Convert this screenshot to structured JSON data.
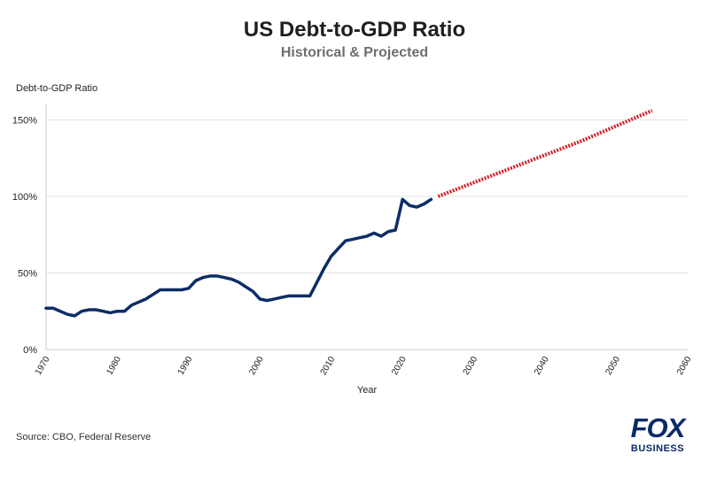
{
  "chart_data": {
    "type": "line",
    "title": "US Debt-to-GDP Ratio",
    "subtitle": "Historical & Projected",
    "xlabel": "Year",
    "ylabel": "Debt-to-GDP Ratio",
    "xlim": [
      1970,
      2060
    ],
    "ylim": [
      0,
      160
    ],
    "xticks": [
      1970,
      1980,
      1990,
      2000,
      2010,
      2020,
      2030,
      2040,
      2050,
      2060
    ],
    "yticks": [
      0,
      50,
      100,
      150
    ],
    "ytick_suffix": "%",
    "grid": "horizontal",
    "legend": "none",
    "series": [
      {
        "style": "solid",
        "color": "#0c2d66",
        "x": [
          1970,
          1971,
          1972,
          1973,
          1974,
          1975,
          1976,
          1977,
          1978,
          1979,
          1980,
          1981,
          1982,
          1983,
          1984,
          1985,
          1986,
          1987,
          1988,
          1989,
          1990,
          1991,
          1992,
          1993,
          1994,
          1995,
          1996,
          1997,
          1998,
          1999,
          2000,
          2001,
          2002,
          2003,
          2004,
          2005,
          2006,
          2007,
          2008,
          2009,
          2010,
          2011,
          2012,
          2013,
          2014,
          2015,
          2016,
          2017,
          2018,
          2019,
          2020,
          2021,
          2022,
          2023,
          2024
        ],
        "y": [
          27,
          27,
          25,
          23,
          22,
          25,
          26,
          26,
          25,
          24,
          25,
          25,
          29,
          31,
          33,
          36,
          39,
          39,
          39,
          39,
          40,
          45,
          47,
          48,
          48,
          47,
          46,
          44,
          41,
          38,
          33,
          32,
          33,
          34,
          35,
          35,
          35,
          35,
          44,
          53,
          61,
          66,
          71,
          72,
          73,
          74,
          76,
          74,
          77,
          78,
          98,
          94,
          93,
          95,
          98
        ]
      },
      {
        "style": "dotted",
        "color": "#d11f2a",
        "x": [
          2025,
          2030,
          2035,
          2040,
          2045,
          2050,
          2055
        ],
        "y": [
          100,
          109,
          118,
          127,
          136,
          146,
          156
        ]
      }
    ]
  },
  "source": "Source: CBO, Federal Reserve",
  "logo": {
    "brand": "FOX",
    "sub": "BUSINESS",
    "color": "#0b2a6b"
  }
}
